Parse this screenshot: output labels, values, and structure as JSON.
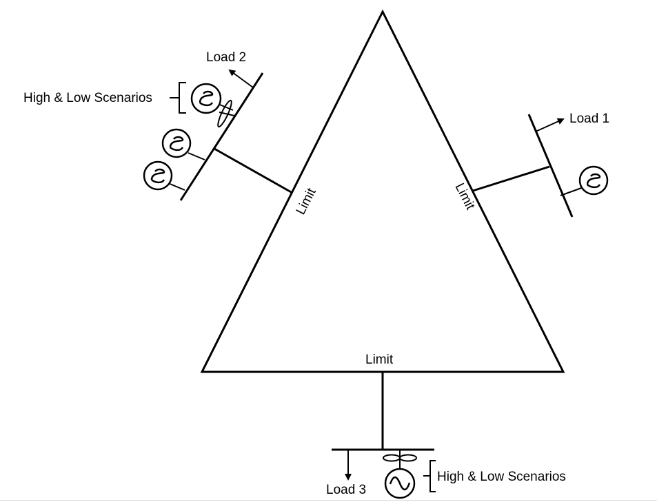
{
  "labels": {
    "load1": "Load 1",
    "load2": "Load 2",
    "load3": "Load 3",
    "limit_left": "Limit",
    "limit_right": "Limit",
    "limit_bottom": "Limit",
    "scenarios_left": "High & Low Scenarios",
    "scenarios_bottom": "High & Low Scenarios"
  },
  "icons": {
    "generator": "ac-generator-icon",
    "wind_turbine": "wind-turbine-icon",
    "load_arrow": "arrow-icon"
  }
}
